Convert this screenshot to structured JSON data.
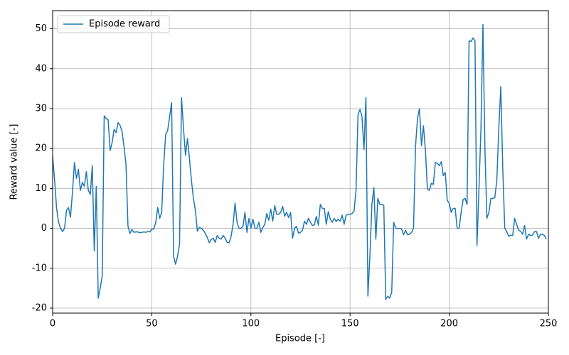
{
  "chart_data": {
    "type": "line",
    "x": [
      0,
      1,
      2,
      3,
      4,
      5,
      6,
      7,
      8,
      9,
      10,
      11,
      12,
      13,
      14,
      15,
      16,
      17,
      18,
      19,
      20,
      21,
      22,
      23,
      24,
      25,
      26,
      27,
      28,
      29,
      30,
      31,
      32,
      33,
      34,
      35,
      36,
      37,
      38,
      39,
      40,
      41,
      42,
      43,
      44,
      45,
      46,
      47,
      48,
      49,
      50,
      51,
      52,
      53,
      54,
      55,
      56,
      57,
      58,
      59,
      60,
      61,
      62,
      63,
      64,
      65,
      66,
      67,
      68,
      69,
      70,
      71,
      72,
      73,
      74,
      75,
      76,
      77,
      78,
      79,
      80,
      81,
      82,
      83,
      84,
      85,
      86,
      87,
      88,
      89,
      90,
      91,
      92,
      93,
      94,
      95,
      96,
      97,
      98,
      99,
      100,
      101,
      102,
      103,
      104,
      105,
      106,
      107,
      108,
      109,
      110,
      111,
      112,
      113,
      114,
      115,
      116,
      117,
      118,
      119,
      120,
      121,
      122,
      123,
      124,
      125,
      126,
      127,
      128,
      129,
      130,
      131,
      132,
      133,
      134,
      135,
      136,
      137,
      138,
      139,
      140,
      141,
      142,
      143,
      144,
      145,
      146,
      147,
      148,
      149,
      150,
      151,
      152,
      153,
      154,
      155,
      156,
      157,
      158,
      159,
      160,
      161,
      162,
      163,
      164,
      165,
      166,
      167,
      168,
      169,
      170,
      171,
      172,
      173,
      174,
      175,
      176,
      177,
      178,
      179,
      180,
      181,
      182,
      183,
      184,
      185,
      186,
      187,
      188,
      189,
      190,
      191,
      192,
      193,
      194,
      195,
      196,
      197,
      198,
      199,
      200,
      201,
      202,
      203,
      204,
      205,
      206,
      207,
      208,
      209,
      210,
      211,
      212,
      213,
      214,
      215,
      216,
      217,
      218,
      219,
      220,
      221,
      222,
      223,
      224,
      225,
      226,
      227,
      228,
      229,
      230,
      231,
      232,
      233,
      234,
      235,
      236,
      237,
      238,
      239,
      240,
      241,
      242,
      243,
      244,
      245,
      246,
      247,
      248,
      249
    ],
    "series": [
      {
        "name": "Episode reward",
        "color": "#1f77b4",
        "values": [
          18,
          12,
          5,
          1.5,
          0,
          -0.8,
          0,
          4.5,
          5.2,
          2.8,
          9,
          16.5,
          12.5,
          14.8,
          9.5,
          11.5,
          10.5,
          14.2,
          9.5,
          8.5,
          15.7,
          -5.7,
          10.5,
          -17.5,
          -15,
          -12,
          28.2,
          27.5,
          27.2,
          19.5,
          21.5,
          24.8,
          24,
          26.5,
          25.8,
          24.3,
          20.5,
          16,
          0.5,
          -1.3,
          -0.3,
          -1,
          -0.9,
          -0.9,
          -1.1,
          -1,
          -0.9,
          -1,
          -0.8,
          -0.9,
          -0.2,
          -0.2,
          1.5,
          5.2,
          2.5,
          4,
          16,
          23.5,
          24.5,
          28,
          31.5,
          -7,
          -9,
          -7,
          -4,
          32.7,
          25,
          18.3,
          22.5,
          17.5,
          12,
          7.5,
          4.5,
          -0.7,
          0.2,
          0,
          -0.5,
          -1.3,
          -2.3,
          -3.6,
          -2.8,
          -2.5,
          -3.5,
          -1.8,
          -2.5,
          -2.7,
          -1.8,
          -2.5,
          -3.5,
          -3.6,
          -2,
          1,
          6.3,
          1.5,
          0,
          0,
          0.5,
          4,
          -1,
          2.5,
          0,
          2.3,
          0,
          0,
          1.5,
          -1,
          0.2,
          1,
          3.7,
          2,
          4.8,
          1.8,
          5.7,
          3.5,
          3.5,
          4,
          5.5,
          3,
          4,
          2.7,
          4,
          -2.5,
          0,
          0.5,
          -1.2,
          -1,
          -0.5,
          1.8,
          1,
          2.5,
          1.5,
          0.7,
          0.9,
          3,
          0.8,
          6,
          5,
          5,
          1,
          4.2,
          2.3,
          1.5,
          2.5,
          1.7,
          2.3,
          1.8,
          3.3,
          1,
          3.3,
          3.5,
          3.5,
          3.7,
          4.3,
          9.5,
          28.5,
          29.8,
          28,
          19.7,
          32.8,
          -17,
          -7,
          6,
          10.2,
          -2.7,
          7.5,
          6,
          6,
          5.8,
          -17.8,
          -17,
          -17.5,
          -16,
          1.5,
          0,
          0,
          0,
          -0.2,
          -1.6,
          -0.5,
          -1.6,
          -1.5,
          -1,
          0,
          20.5,
          27.5,
          30,
          20.7,
          25.7,
          19.5,
          9.8,
          9.5,
          11.3,
          11,
          16.5,
          16.3,
          15.7,
          16.7,
          13.2,
          14,
          7,
          6.3,
          4,
          5,
          5,
          0,
          0,
          4,
          7.2,
          7.5,
          6,
          47,
          46.8,
          47.7,
          47,
          -4.3,
          10,
          25,
          51.1,
          20,
          2.5,
          4,
          7.5,
          7.5,
          7.7,
          12,
          25,
          35.5,
          15,
          0,
          -0.8,
          -2,
          -1.7,
          -1.8,
          2.5,
          1,
          -0.5,
          -0.7,
          -1.5,
          0.7,
          -2.7,
          -1.5,
          -1.8,
          -1.7,
          -0.8,
          -0.8,
          -2.5,
          -1.5,
          -1.5,
          -1.8,
          -2.7
        ]
      }
    ],
    "x_label": "Episode [-]",
    "y_label": "Reward value [-]",
    "xlim": [
      0,
      250
    ],
    "xticks": [
      0,
      50,
      100,
      150,
      200,
      250
    ],
    "ylim": [
      -21.25,
      54.55
    ],
    "yticks": [
      -20,
      -10,
      0,
      10,
      20,
      30,
      40,
      50
    ],
    "grid": true,
    "legend": "upper left"
  }
}
